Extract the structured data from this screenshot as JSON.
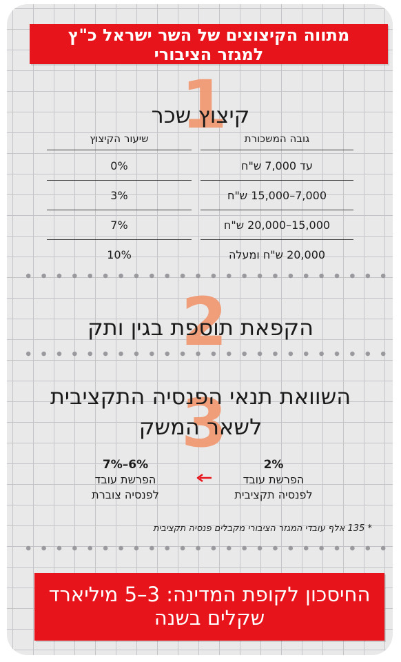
{
  "header": {
    "title_line1": "מתווה הקיצוצים של השר ישראל כ\"ץ",
    "title_line2": "למגזר הציבורי"
  },
  "section1": {
    "number": "1",
    "title": "קיצוץ שכר",
    "col_salary": "גובה המשכורת",
    "col_rate": "שיעור הקיצוץ",
    "rows": [
      {
        "salary": "עד 7,000 ש\"ח",
        "rate": "0%"
      },
      {
        "salary": "7,000–15,000 ש\"ח",
        "rate": "3%"
      },
      {
        "salary": "15,000–20,000 ש\"ח",
        "rate": "7%"
      },
      {
        "salary": "20,000 ש\"ח ומעלה",
        "rate": "10%"
      }
    ]
  },
  "section2": {
    "number": "2",
    "title": "הקפאת תוספת בגין ותק"
  },
  "section3": {
    "number": "3",
    "title_line1": "השוואת תנאי הפנסיה התקציבית",
    "title_line2": "לשאר המשק",
    "budget": {
      "pct": "2%",
      "line1": "הפרשת עובד",
      "line2": "לפנסיה תקציבית"
    },
    "accrued": {
      "pct": "6%–7%",
      "line1": "הפרשת עובד",
      "line2": "לפנסיה צוברת"
    },
    "arrow_icon": "left-arrow-icon",
    "note": "* 135 אלף עובדי המגזר הציבורי מקבלים פנסיה תקציבית"
  },
  "footer": {
    "line1": "החיסכון לקופת המדינה: 3–5 מיליארד",
    "line2": "שקלים בשנה"
  },
  "colors": {
    "accent_red": "#e8141c",
    "number_orange": "#f19a74",
    "background": "#e9e9ea"
  }
}
